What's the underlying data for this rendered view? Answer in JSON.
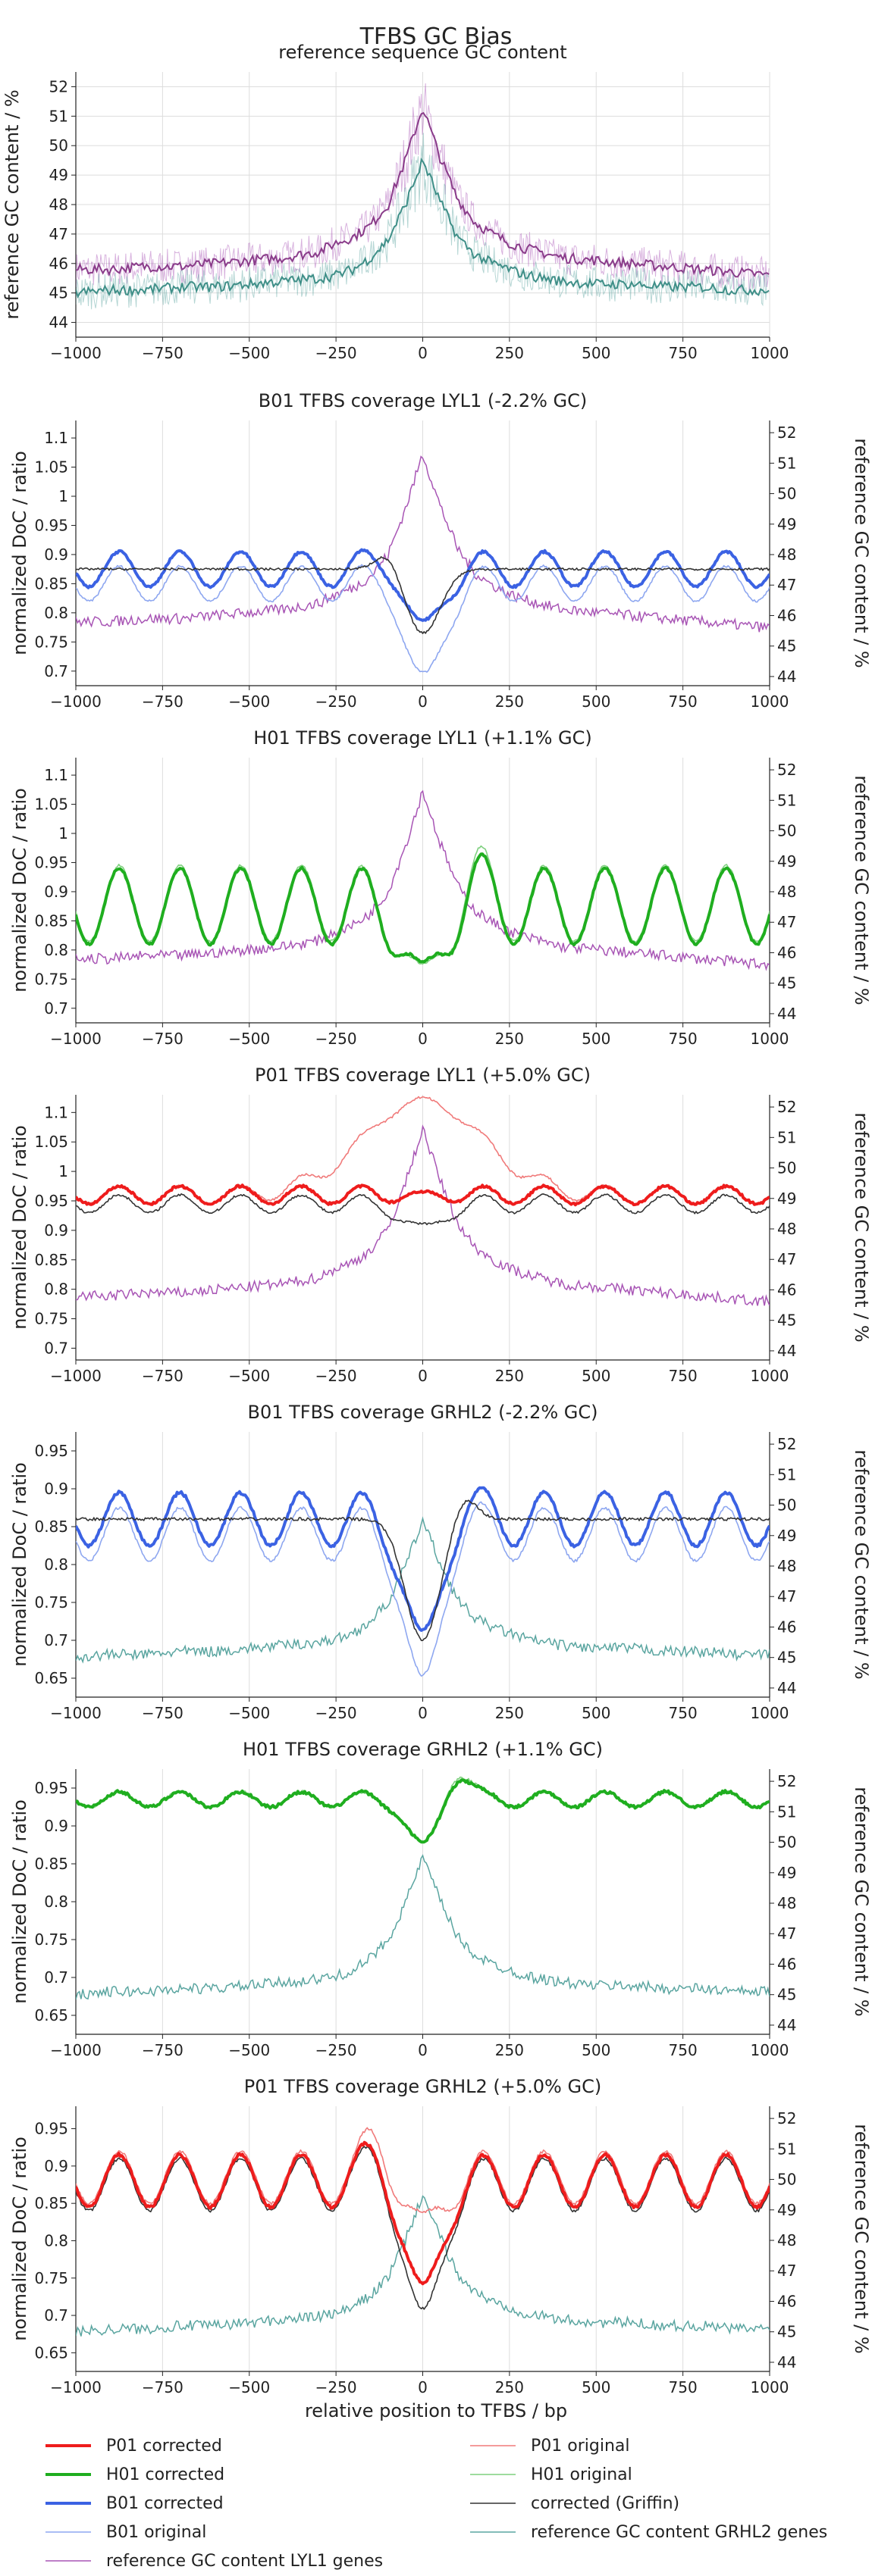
{
  "figure": {
    "title": "TFBS GC Bias",
    "xlabel": "relative position to TFBS / bp"
  },
  "colors": {
    "P01_corrected": "#ee1c1c",
    "P01_original": "#f07a7a",
    "H01_corrected": "#1fae1f",
    "H01_original": "#7fd07f",
    "B01_corrected": "#3b62e3",
    "B01_original": "#8ea7f0",
    "griffin": "#333333",
    "gc_lyl1": "#a855b5",
    "gc_grhl2": "#5aa5a0",
    "gc_top_lyl1": "#8a3c8a",
    "gc_top_grhl2": "#3f8f88",
    "grid": "#dddddd"
  },
  "legend": {
    "items": [
      {
        "key": "P01_corrected",
        "label": "P01 corrected",
        "width": 4
      },
      {
        "key": "P01_original",
        "label": "P01 original",
        "width": 1.5
      },
      {
        "key": "H01_corrected",
        "label": "H01 corrected",
        "width": 4
      },
      {
        "key": "H01_original",
        "label": "H01 original",
        "width": 1.5
      },
      {
        "key": "B01_corrected",
        "label": "B01 corrected",
        "width": 4
      },
      {
        "key": "griffin",
        "label": "corrected (Griffin)",
        "width": 1.5
      },
      {
        "key": "B01_original",
        "label": "B01 original",
        "width": 1.5
      },
      {
        "key": "gc_grhl2",
        "label": "reference GC content GRHL2 genes",
        "width": 1.5
      },
      {
        "key": "gc_lyl1",
        "label": "reference GC content LYL1 genes",
        "width": 1.5
      }
    ]
  },
  "chart_data": [
    {
      "type": "line",
      "title": "reference sequence GC content",
      "ylabel": "reference GC content / %",
      "xlim": [
        -1000,
        1000
      ],
      "ylim": [
        43.5,
        52.5
      ],
      "yticks": [
        44,
        45,
        46,
        47,
        48,
        49,
        50,
        51,
        52
      ],
      "xticks": [
        -1000,
        -750,
        -500,
        -250,
        0,
        250,
        500,
        750,
        1000
      ],
      "grid": true,
      "series": [
        {
          "name": "reference GC content LYL1 genes",
          "x": [
            -1000,
            -900,
            -800,
            -700,
            -600,
            -500,
            -400,
            -300,
            -250,
            -200,
            -150,
            -100,
            -50,
            0,
            50,
            100,
            150,
            200,
            250,
            300,
            400,
            500,
            600,
            700,
            800,
            900,
            1000
          ],
          "y": [
            45.8,
            45.8,
            45.9,
            45.9,
            46.0,
            46.1,
            46.2,
            46.4,
            46.7,
            46.9,
            47.3,
            48.0,
            49.5,
            51.3,
            49.6,
            48.2,
            47.4,
            47.0,
            46.7,
            46.5,
            46.2,
            46.1,
            46.0,
            45.9,
            45.8,
            45.7,
            45.6
          ]
        },
        {
          "name": "reference GC content GRHL2 genes",
          "x": [
            -1000,
            -900,
            -800,
            -700,
            -600,
            -500,
            -400,
            -300,
            -250,
            -200,
            -150,
            -100,
            -50,
            0,
            50,
            100,
            150,
            200,
            250,
            300,
            400,
            500,
            600,
            700,
            800,
            900,
            1000
          ],
          "y": [
            45.0,
            45.1,
            45.1,
            45.2,
            45.2,
            45.3,
            45.4,
            45.5,
            45.6,
            45.8,
            46.2,
            46.8,
            48.0,
            49.5,
            48.1,
            46.9,
            46.3,
            46.0,
            45.8,
            45.6,
            45.4,
            45.3,
            45.3,
            45.2,
            45.2,
            45.1,
            45.1
          ]
        }
      ]
    },
    {
      "type": "line",
      "title": "B01 TFBS coverage LYL1 (-2.2% GC)",
      "ylabel": "normalized DoC / ratio",
      "y2label": "reference GC content / %",
      "xlim": [
        -1000,
        1000
      ],
      "ylim": [
        0.675,
        1.13
      ],
      "yticks": [
        0.7,
        0.75,
        0.8,
        0.85,
        0.9,
        0.95,
        1,
        1.05,
        1.1
      ],
      "ytick_labels": [
        "0.7",
        "0.75",
        "0.8",
        "0.85",
        "0.9",
        "0.95",
        "1",
        "1.05",
        "1.1"
      ],
      "y2lim": [
        43.7,
        52.4
      ],
      "y2ticks": [
        44,
        45,
        46,
        47,
        48,
        49,
        50,
        51,
        52
      ],
      "xticks": [
        -1000,
        -750,
        -500,
        -250,
        0,
        250,
        500,
        750,
        1000
      ],
      "grid": true,
      "gc_series": "gc_lyl1",
      "series": [
        {
          "name": "B01 original",
          "key": "B01_original",
          "wave": {
            "base": 0.85,
            "amp": 0.03,
            "period": 175,
            "dip": -0.165,
            "dip_width": 55,
            "peak_pos": -100,
            "peak": 0.02
          }
        },
        {
          "name": "B01 corrected",
          "key": "B01_corrected",
          "wave": {
            "base": 0.875,
            "amp": 0.03,
            "period": 175,
            "dip": -0.1,
            "dip_width": 50,
            "peak_pos": -100,
            "peak": 0.02
          }
        },
        {
          "name": "corrected (Griffin)",
          "key": "griffin",
          "wave": {
            "base": 0.875,
            "amp": 0.0,
            "period": 175,
            "dip": -0.11,
            "dip_width": 50,
            "peak_pos": -100,
            "peak": 0.03,
            "local": true
          }
        },
        {
          "name": "reference GC content LYL1 genes",
          "key": "gc_lyl1",
          "axis": "right"
        }
      ]
    },
    {
      "type": "line",
      "title": "H01 TFBS coverage LYL1 (+1.1% GC)",
      "ylabel": "normalized DoC / ratio",
      "y2label": "reference GC content / %",
      "xlim": [
        -1000,
        1000
      ],
      "ylim": [
        0.675,
        1.13
      ],
      "yticks": [
        0.7,
        0.75,
        0.8,
        0.85,
        0.9,
        0.95,
        1,
        1.05,
        1.1
      ],
      "ytick_labels": [
        "0.7",
        "0.75",
        "0.8",
        "0.85",
        "0.9",
        "0.95",
        "1",
        "1.05",
        "1.1"
      ],
      "y2lim": [
        43.7,
        52.4
      ],
      "y2ticks": [
        44,
        45,
        46,
        47,
        48,
        49,
        50,
        51,
        52
      ],
      "xticks": [
        -1000,
        -750,
        -500,
        -250,
        0,
        250,
        500,
        750,
        1000
      ],
      "grid": true,
      "gc_series": "gc_lyl1",
      "series": [
        {
          "name": "H01 original",
          "key": "H01_original",
          "wave": {
            "base": 0.88,
            "amp": 0.065,
            "period": 175,
            "dip": -0.13,
            "dip_width": 50,
            "peak_pos": 150,
            "peak": 0.04
          }
        },
        {
          "name": "H01 corrected",
          "key": "H01_corrected",
          "wave": {
            "base": 0.875,
            "amp": 0.065,
            "period": 175,
            "dip": -0.12,
            "dip_width": 50,
            "peak_pos": 150,
            "peak": 0.03
          }
        },
        {
          "name": "reference GC content LYL1 genes",
          "key": "gc_lyl1",
          "axis": "right"
        }
      ]
    },
    {
      "type": "line",
      "title": "P01 TFBS coverage LYL1 (+5.0% GC)",
      "ylabel": "normalized DoC / ratio",
      "y2label": "reference GC content / %",
      "xlim": [
        -1000,
        1000
      ],
      "ylim": [
        0.68,
        1.13
      ],
      "yticks": [
        0.7,
        0.75,
        0.8,
        0.85,
        0.9,
        0.95,
        1,
        1.05,
        1.1
      ],
      "ytick_labels": [
        "0.7",
        "0.75",
        "0.8",
        "0.85",
        "0.9",
        "0.95",
        "1",
        "1.05",
        "1.1"
      ],
      "y2lim": [
        43.7,
        52.4
      ],
      "y2ticks": [
        44,
        45,
        46,
        47,
        48,
        49,
        50,
        51,
        52
      ],
      "xticks": [
        -1000,
        -750,
        -500,
        -250,
        0,
        250,
        500,
        750,
        1000
      ],
      "grid": true,
      "gc_series": "gc_lyl1",
      "series": [
        {
          "name": "P01 original",
          "key": "P01_original",
          "wave": {
            "base": 0.96,
            "amp": 0.015,
            "period": 175,
            "dip": 0.16,
            "dip_width": 170,
            "peak_pos": 0,
            "peak": 0.0
          }
        },
        {
          "name": "corrected (Griffin)",
          "key": "griffin",
          "wave": {
            "base": 0.945,
            "amp": 0.015,
            "period": 175,
            "dip": -0.04,
            "dip_width": 60,
            "peak_pos": 0,
            "peak": 0.0
          }
        },
        {
          "name": "P01 corrected",
          "key": "P01_corrected",
          "wave": {
            "base": 0.96,
            "amp": 0.015,
            "period": 175,
            "dip": 0.0,
            "dip_width": 60,
            "peak_pos": 0,
            "peak": 0.0
          }
        },
        {
          "name": "reference GC content LYL1 genes",
          "key": "gc_lyl1",
          "axis": "right"
        }
      ]
    },
    {
      "type": "line",
      "title": "B01 TFBS coverage GRHL2 (-2.2% GC)",
      "ylabel": "normalized DoC / ratio",
      "y2label": "reference GC content / %",
      "xlim": [
        -1000,
        1000
      ],
      "ylim": [
        0.625,
        0.975
      ],
      "yticks": [
        0.65,
        0.7,
        0.75,
        0.8,
        0.85,
        0.9,
        0.95
      ],
      "ytick_labels": [
        "0.65",
        "0.7",
        "0.75",
        "0.8",
        "0.85",
        "0.9",
        "0.95"
      ],
      "y2lim": [
        43.7,
        52.4
      ],
      "y2ticks": [
        44,
        45,
        46,
        47,
        48,
        49,
        50,
        51,
        52
      ],
      "xticks": [
        -1000,
        -750,
        -500,
        -250,
        0,
        250,
        500,
        750,
        1000
      ],
      "grid": true,
      "gc_series": "gc_grhl2",
      "series": [
        {
          "name": "B01 original",
          "key": "B01_original",
          "wave": {
            "base": 0.84,
            "amp": 0.035,
            "period": 175,
            "dip": -0.2,
            "dip_width": 50,
            "peak_pos": 120,
            "peak": 0.02
          }
        },
        {
          "name": "B01 corrected",
          "key": "B01_corrected",
          "wave": {
            "base": 0.86,
            "amp": 0.035,
            "period": 175,
            "dip": -0.16,
            "dip_width": 50,
            "peak_pos": 120,
            "peak": 0.02
          }
        },
        {
          "name": "corrected (Griffin)",
          "key": "griffin",
          "wave": {
            "base": 0.86,
            "amp": 0.0,
            "period": 175,
            "dip": -0.16,
            "dip_width": 50,
            "peak_pos": 120,
            "peak": 0.03,
            "local": true
          }
        },
        {
          "name": "reference GC content GRHL2 genes",
          "key": "gc_grhl2",
          "axis": "right"
        }
      ]
    },
    {
      "type": "line",
      "title": "H01 TFBS coverage GRHL2 (+1.1% GC)",
      "ylabel": "normalized DoC / ratio",
      "y2label": "reference GC content / %",
      "xlim": [
        -1000,
        1000
      ],
      "ylim": [
        0.625,
        0.975
      ],
      "yticks": [
        0.65,
        0.7,
        0.75,
        0.8,
        0.85,
        0.9,
        0.95
      ],
      "ytick_labels": [
        "0.65",
        "0.7",
        "0.75",
        "0.8",
        "0.85",
        "0.9",
        "0.95"
      ],
      "y2lim": [
        43.7,
        52.4
      ],
      "y2ticks": [
        44,
        45,
        46,
        47,
        48,
        49,
        50,
        51,
        52
      ],
      "xticks": [
        -1000,
        -750,
        -500,
        -250,
        0,
        250,
        500,
        750,
        1000
      ],
      "grid": true,
      "gc_series": "gc_grhl2",
      "series": [
        {
          "name": "H01 original",
          "key": "H01_original",
          "wave": {
            "base": 0.935,
            "amp": 0.01,
            "period": 175,
            "dip": -0.06,
            "dip_width": 45,
            "peak_pos": 100,
            "peak": 0.04
          }
        },
        {
          "name": "H01 corrected",
          "key": "H01_corrected",
          "wave": {
            "base": 0.935,
            "amp": 0.01,
            "period": 175,
            "dip": -0.06,
            "dip_width": 45,
            "peak_pos": 100,
            "peak": 0.035
          }
        },
        {
          "name": "reference GC content GRHL2 genes",
          "key": "gc_grhl2",
          "axis": "right"
        }
      ]
    },
    {
      "type": "line",
      "title": "P01 TFBS coverage GRHL2 (+5.0% GC)",
      "ylabel": "normalized DoC / ratio",
      "y2label": "reference GC content / %",
      "xlim": [
        -1000,
        1000
      ],
      "ylim": [
        0.625,
        0.98
      ],
      "yticks": [
        0.65,
        0.7,
        0.75,
        0.8,
        0.85,
        0.9,
        0.95
      ],
      "ytick_labels": [
        "0.65",
        "0.7",
        "0.75",
        "0.8",
        "0.85",
        "0.9",
        "0.95"
      ],
      "y2lim": [
        43.7,
        52.4
      ],
      "y2ticks": [
        44,
        45,
        46,
        47,
        48,
        49,
        50,
        51,
        52
      ],
      "xticks": [
        -1000,
        -750,
        -500,
        -250,
        0,
        250,
        500,
        750,
        1000
      ],
      "grid": true,
      "gc_series": "gc_grhl2",
      "series": [
        {
          "name": "P01 original",
          "key": "P01_original",
          "wave": {
            "base": 0.885,
            "amp": 0.035,
            "period": 175,
            "dip": -0.06,
            "dip_width": 50,
            "peak_pos": -130,
            "peak": 0.05
          }
        },
        {
          "name": "corrected (Griffin)",
          "key": "griffin",
          "wave": {
            "base": 0.875,
            "amp": 0.035,
            "period": 175,
            "dip": -0.18,
            "dip_width": 50,
            "peak_pos": -130,
            "peak": 0.03
          }
        },
        {
          "name": "P01 corrected",
          "key": "P01_corrected",
          "wave": {
            "base": 0.88,
            "amp": 0.035,
            "period": 175,
            "dip": -0.15,
            "dip_width": 50,
            "peak_pos": -130,
            "peak": 0.03
          }
        },
        {
          "name": "reference GC content GRHL2 genes",
          "key": "gc_grhl2",
          "axis": "right"
        }
      ]
    }
  ]
}
